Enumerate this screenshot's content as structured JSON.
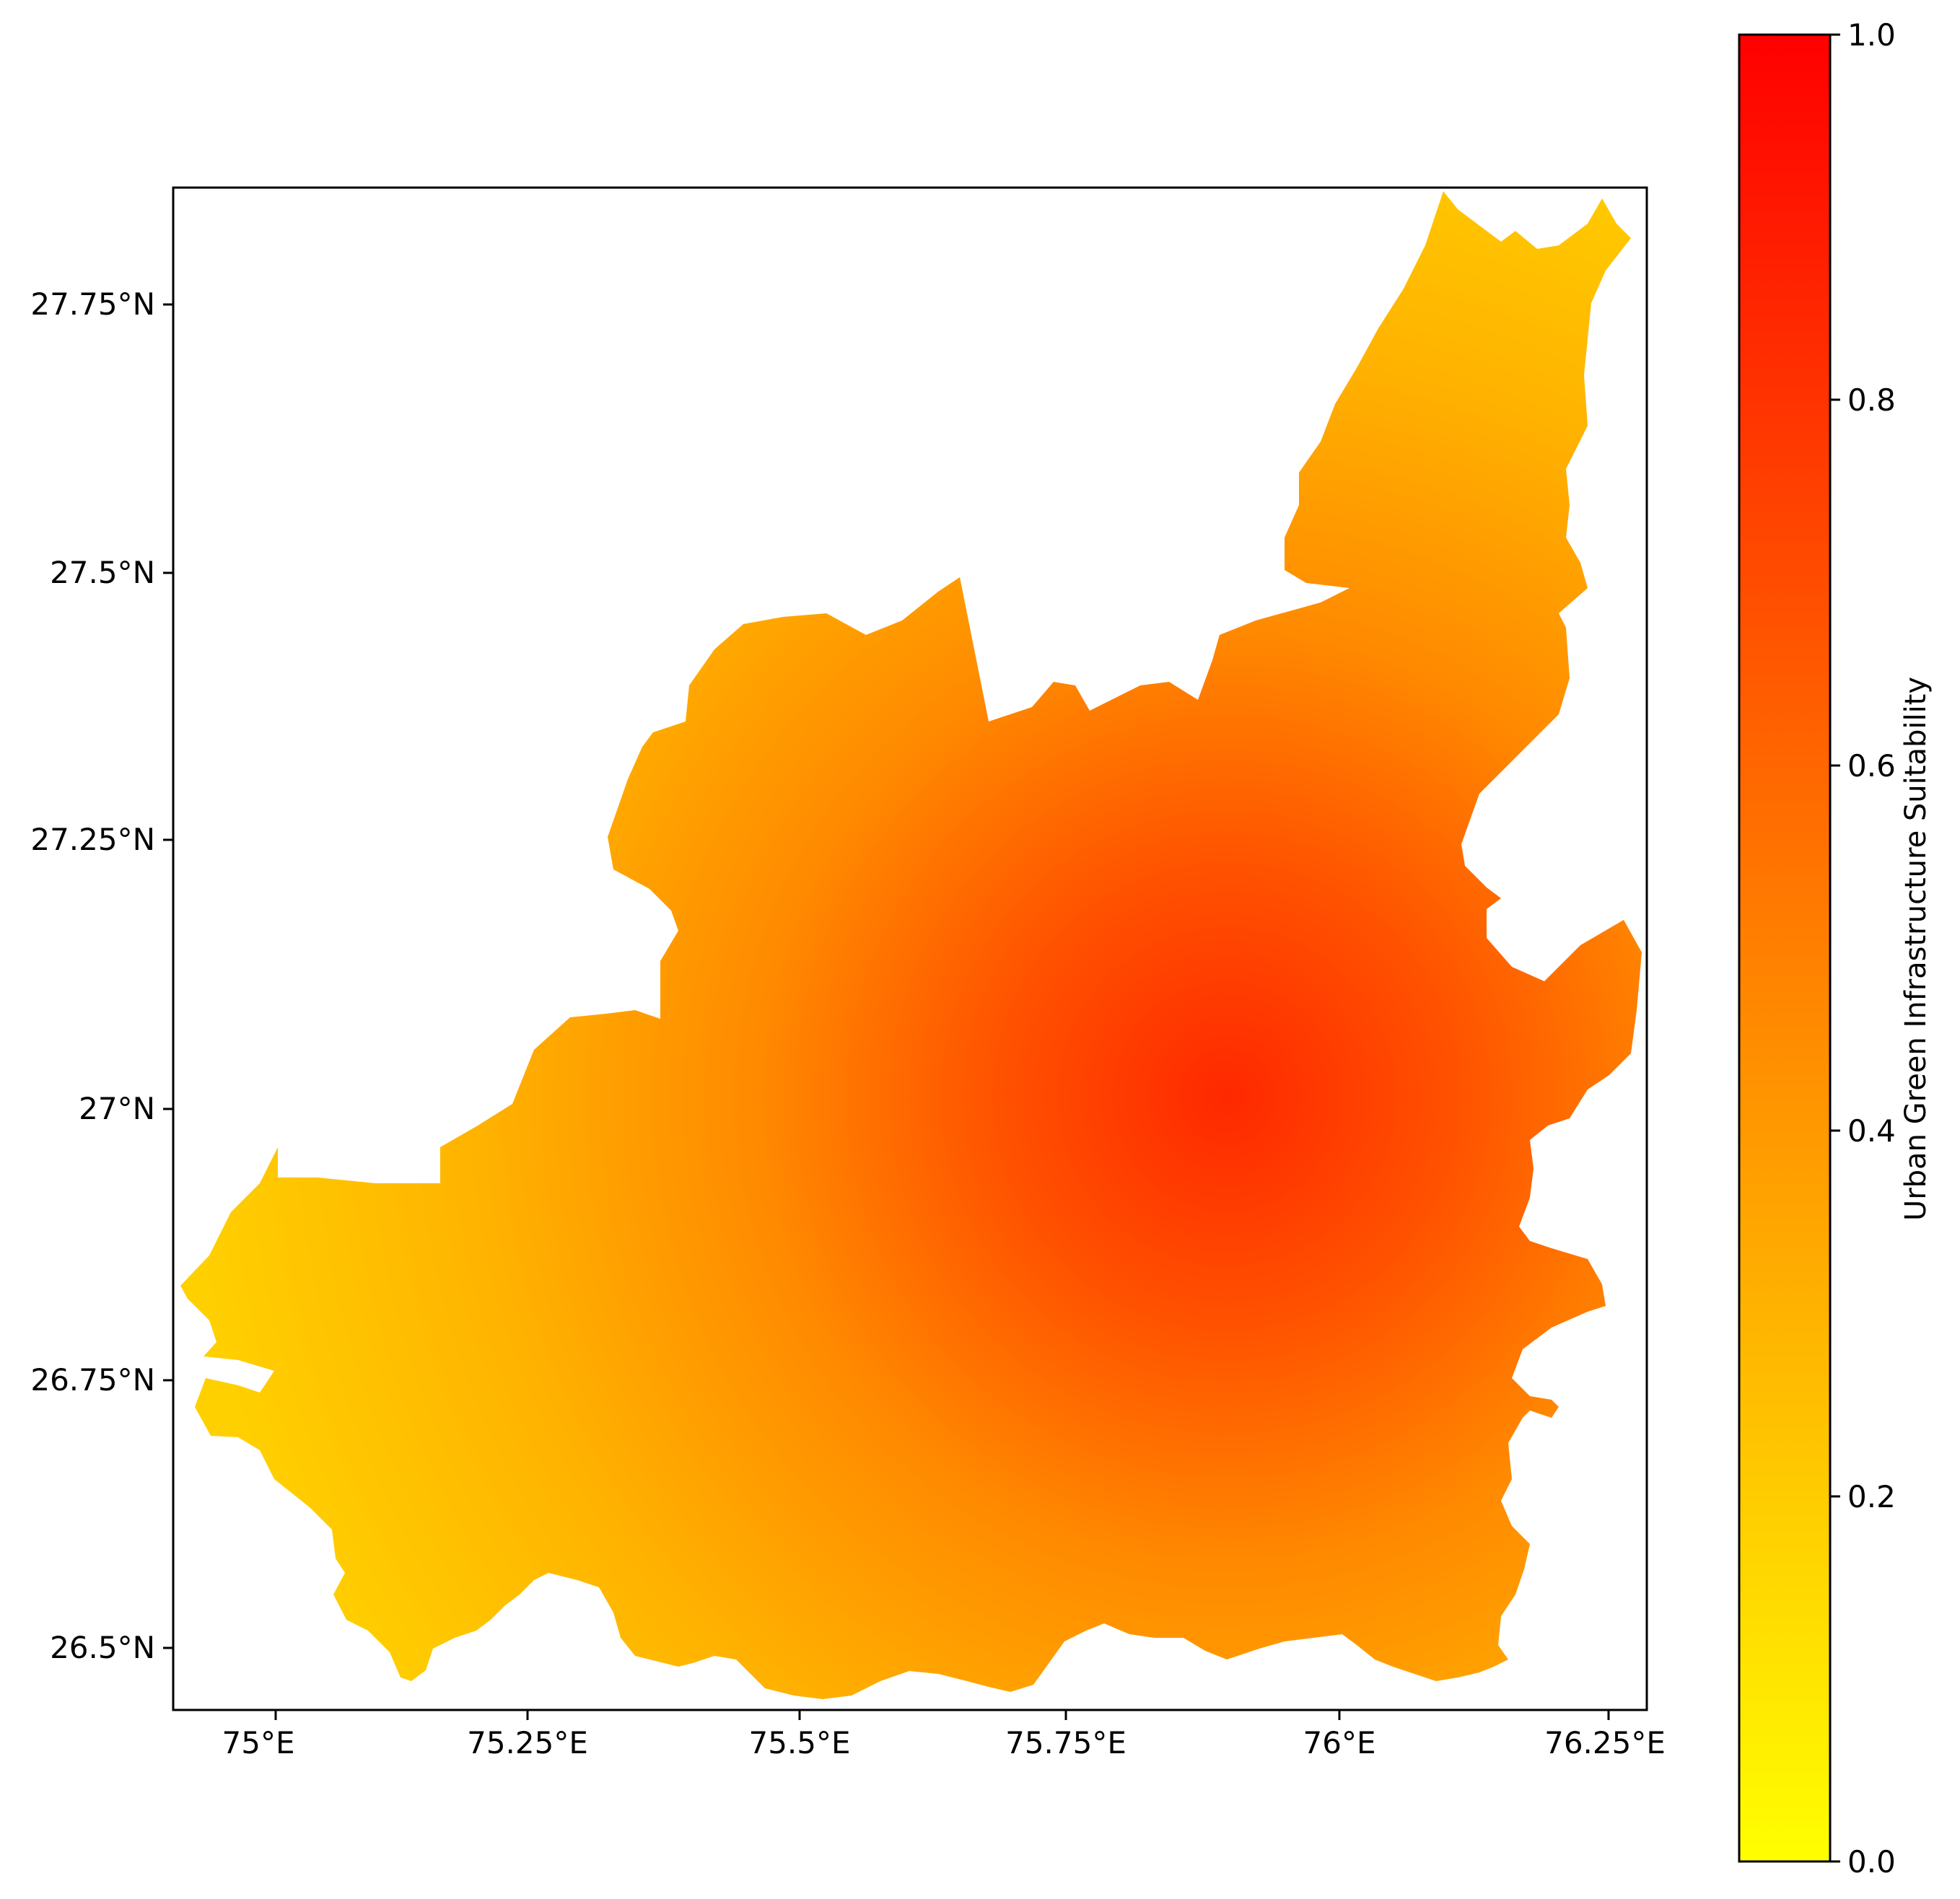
{
  "map": {
    "x_ticks": [
      "75°E",
      "75.25°E",
      "75.5°E",
      "75.75°E",
      "76°E",
      "76.25°E"
    ],
    "y_ticks": [
      "27.75°N",
      "27.5°N",
      "27.25°N",
      "27°N",
      "26.75°N",
      "26.5°N"
    ],
    "x_tick_values": [
      75.0,
      75.25,
      75.5,
      75.75,
      76.0,
      76.25
    ],
    "y_tick_values": [
      27.75,
      27.5,
      27.25,
      27.0,
      26.75,
      26.5
    ],
    "x_range": [
      74.9,
      76.27
    ],
    "y_range": [
      26.44,
      27.86
    ],
    "colormap": "autumn_r",
    "hotspot_center": [
      75.95,
      27.0
    ],
    "value_range_shown": [
      0.15,
      0.75
    ]
  },
  "colorbar": {
    "label": "Urban Green Infrastructure Suitability",
    "ticks": [
      "0.0",
      "0.2",
      "0.4",
      "0.6",
      "0.8",
      "1.0"
    ],
    "tick_values": [
      0.0,
      0.2,
      0.4,
      0.6,
      0.8,
      1.0
    ],
    "color_low": "#ffff00",
    "color_high": "#ff0000"
  }
}
